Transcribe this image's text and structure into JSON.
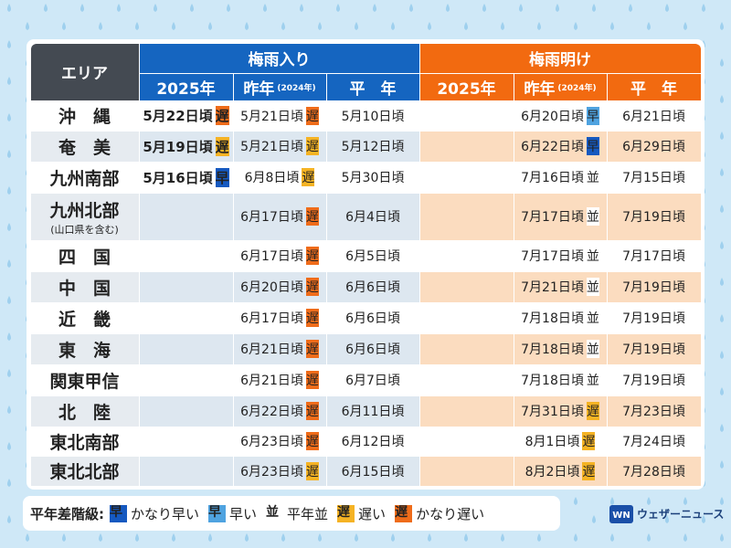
{
  "table": {
    "corner": "エリア",
    "groups": [
      {
        "title": "梅雨入り",
        "color": "#1565c0",
        "sub": [
          {
            "main": "2025年"
          },
          {
            "main": "昨年",
            "small": "(2024年)"
          },
          {
            "main": "平　年"
          }
        ]
      },
      {
        "title": "梅雨明け",
        "color": "#f26a10",
        "sub": [
          {
            "main": "2025年"
          },
          {
            "main": "昨年",
            "small": "(2024年)"
          },
          {
            "main": "平　年"
          }
        ]
      }
    ],
    "rows": [
      {
        "area": "沖　縄",
        "cells": [
          {
            "date": "5月22日頃",
            "badge": {
              "label": "遅",
              "color": "#ef6c1a"
            }
          },
          {
            "date": "5月21日頃",
            "badge": {
              "label": "遅",
              "color": "#ef6c1a"
            }
          },
          {
            "date": "5月10日頃"
          },
          null,
          {
            "date": "6月20日頃",
            "badge": {
              "label": "早",
              "color": "#4fa3e0"
            }
          },
          {
            "date": "6月21日頃"
          }
        ]
      },
      {
        "area": "奄　美",
        "cells": [
          {
            "date": "5月19日頃",
            "badge": {
              "label": "遅",
              "color": "#f5b324"
            }
          },
          {
            "date": "5月21日頃",
            "badge": {
              "label": "遅",
              "color": "#f5b324"
            }
          },
          {
            "date": "5月12日頃"
          },
          null,
          {
            "date": "6月22日頃",
            "badge": {
              "label": "早",
              "color": "#1559c0"
            }
          },
          {
            "date": "6月29日頃"
          }
        ]
      },
      {
        "area": "九州南部",
        "cells": [
          {
            "date": "5月16日頃",
            "badge": {
              "label": "早",
              "color": "#1559c0"
            }
          },
          {
            "date": "6月8日頃",
            "badge": {
              "label": "遅",
              "color": "#f5b324"
            }
          },
          {
            "date": "5月30日頃"
          },
          null,
          {
            "date": "7月16日頃",
            "badge": {
              "label": "並",
              "color": "#ffffff"
            }
          },
          {
            "date": "7月15日頃"
          }
        ]
      },
      {
        "area": "九州北部",
        "note": "(山口県を含む)",
        "cells": [
          null,
          {
            "date": "6月17日頃",
            "badge": {
              "label": "遅",
              "color": "#ef6c1a"
            }
          },
          {
            "date": "6月4日頃"
          },
          null,
          {
            "date": "7月17日頃",
            "badge": {
              "label": "並",
              "color": "#ffffff"
            }
          },
          {
            "date": "7月19日頃"
          }
        ]
      },
      {
        "area": "四　国",
        "cells": [
          null,
          {
            "date": "6月17日頃",
            "badge": {
              "label": "遅",
              "color": "#ef6c1a"
            }
          },
          {
            "date": "6月5日頃"
          },
          null,
          {
            "date": "7月17日頃",
            "badge": {
              "label": "並",
              "color": "#ffffff"
            }
          },
          {
            "date": "7月17日頃"
          }
        ]
      },
      {
        "area": "中　国",
        "cells": [
          null,
          {
            "date": "6月20日頃",
            "badge": {
              "label": "遅",
              "color": "#ef6c1a"
            }
          },
          {
            "date": "6月6日頃"
          },
          null,
          {
            "date": "7月21日頃",
            "badge": {
              "label": "並",
              "color": "#ffffff"
            }
          },
          {
            "date": "7月19日頃"
          }
        ]
      },
      {
        "area": "近　畿",
        "cells": [
          null,
          {
            "date": "6月17日頃",
            "badge": {
              "label": "遅",
              "color": "#ef6c1a"
            }
          },
          {
            "date": "6月6日頃"
          },
          null,
          {
            "date": "7月18日頃",
            "badge": {
              "label": "並",
              "color": "#ffffff"
            }
          },
          {
            "date": "7月19日頃"
          }
        ]
      },
      {
        "area": "東　海",
        "cells": [
          null,
          {
            "date": "6月21日頃",
            "badge": {
              "label": "遅",
              "color": "#ef6c1a"
            }
          },
          {
            "date": "6月6日頃"
          },
          null,
          {
            "date": "7月18日頃",
            "badge": {
              "label": "並",
              "color": "#ffffff"
            }
          },
          {
            "date": "7月19日頃"
          }
        ]
      },
      {
        "area": "関東甲信",
        "cells": [
          null,
          {
            "date": "6月21日頃",
            "badge": {
              "label": "遅",
              "color": "#ef6c1a"
            }
          },
          {
            "date": "6月7日頃"
          },
          null,
          {
            "date": "7月18日頃",
            "badge": {
              "label": "並",
              "color": "#ffffff"
            }
          },
          {
            "date": "7月19日頃"
          }
        ]
      },
      {
        "area": "北　陸",
        "cells": [
          null,
          {
            "date": "6月22日頃",
            "badge": {
              "label": "遅",
              "color": "#ef6c1a"
            }
          },
          {
            "date": "6月11日頃"
          },
          null,
          {
            "date": "7月31日頃",
            "badge": {
              "label": "遅",
              "color": "#f5b324"
            }
          },
          {
            "date": "7月23日頃"
          }
        ]
      },
      {
        "area": "東北南部",
        "cells": [
          null,
          {
            "date": "6月23日頃",
            "badge": {
              "label": "遅",
              "color": "#ef6c1a"
            }
          },
          {
            "date": "6月12日頃"
          },
          null,
          {
            "date": "8月1日頃",
            "badge": {
              "label": "遅",
              "color": "#f5b324"
            }
          },
          {
            "date": "7月24日頃"
          }
        ]
      },
      {
        "area": "東北北部",
        "cells": [
          null,
          {
            "date": "6月23日頃",
            "badge": {
              "label": "遅",
              "color": "#f5b324"
            }
          },
          {
            "date": "6月15日頃"
          },
          null,
          {
            "date": "8月2日頃",
            "badge": {
              "label": "遅",
              "color": "#f5b324"
            }
          },
          {
            "date": "7月28日頃"
          }
        ]
      }
    ]
  },
  "legend": {
    "title": "平年差階級:",
    "items": [
      {
        "badge": "早",
        "color": "#1559c0",
        "label": "かなり早い"
      },
      {
        "badge": "早",
        "color": "#4fa3e0",
        "label": "早い"
      },
      {
        "badge": "並",
        "color": "#ffffff",
        "label": "平年並"
      },
      {
        "badge": "遅",
        "color": "#f5b324",
        "label": "遅い"
      },
      {
        "badge": "遅",
        "color": "#ef6c1a",
        "label": "かなり遅い"
      }
    ]
  },
  "logo": "ウェザーニュース"
}
